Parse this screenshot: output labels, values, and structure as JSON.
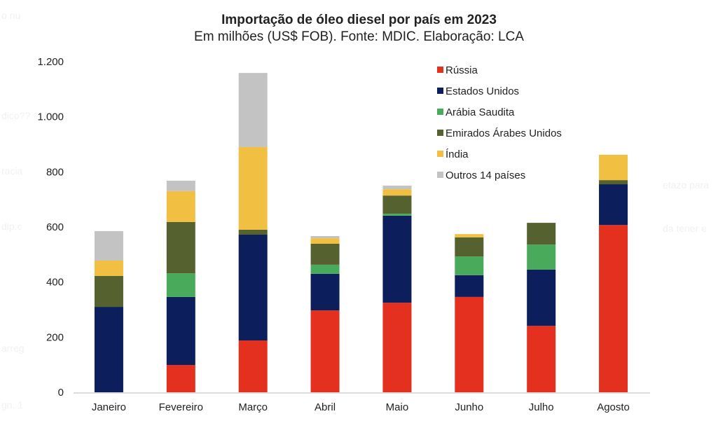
{
  "background_fragments": [
    "o nu",
    "dico??",
    "racia",
    "dip.c",
    "arreg",
    "gn. 1",
    "etazo para",
    "da tener e"
  ],
  "chart_data": {
    "type": "bar",
    "stacked": true,
    "title": "Importação de óleo diesel por país em 2023",
    "subtitle": "Em milhões (US$ FOB). Fonte: MDIC. Elaboração: LCA",
    "xlabel": "",
    "ylabel": "",
    "ylim": [
      0,
      1200
    ],
    "yticks": [
      0,
      200,
      400,
      600,
      800,
      1000,
      1200
    ],
    "ytick_labels": [
      "0",
      "200",
      "400",
      "600",
      "800",
      "1.000",
      "1.200"
    ],
    "grid": false,
    "legend_position": "top-right",
    "categories": [
      "Janeiro",
      "Fevereiro",
      "Março",
      "Abril",
      "Maio",
      "Junho",
      "Julho",
      "Agosto"
    ],
    "series": [
      {
        "name": "Rússia",
        "color": "#e3301f",
        "values": [
          0,
          99,
          188,
          297,
          325,
          346,
          241,
          607
        ]
      },
      {
        "name": "Estados Unidos",
        "color": "#0c1f5c",
        "values": [
          310,
          247,
          384,
          133,
          316,
          79,
          204,
          148
        ]
      },
      {
        "name": "Arábia Saudita",
        "color": "#4aaa5c",
        "values": [
          0,
          86,
          0,
          33,
          7,
          68,
          91,
          0
        ]
      },
      {
        "name": "Emirados Árabes Unidos",
        "color": "#566130",
        "values": [
          112,
          186,
          18,
          76,
          66,
          69,
          79,
          15
        ]
      },
      {
        "name": "Índia",
        "color": "#f1c043",
        "values": [
          56,
          112,
          300,
          20,
          23,
          12,
          0,
          92
        ]
      },
      {
        "name": "Outros 14 países",
        "color": "#c3c3c3",
        "values": [
          107,
          38,
          269,
          8,
          13,
          0,
          0,
          0
        ]
      }
    ]
  }
}
